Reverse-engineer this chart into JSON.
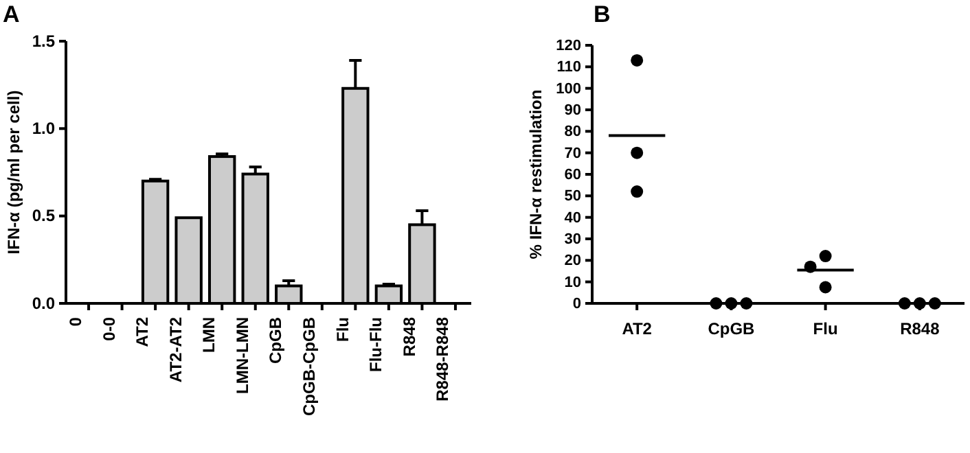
{
  "chart_data": [
    {
      "type": "bar",
      "title": "A",
      "ylabel": "IFN-α (pg/ml per cell)",
      "categories": [
        "0",
        "0-0",
        "AT2",
        "AT2-AT2",
        "LMN",
        "LMN-LMN",
        "CpGB",
        "CpGB-CpGB",
        "Flu",
        "Flu-Flu",
        "R848",
        "R848-R848"
      ],
      "values": [
        0,
        0,
        0.7,
        0.49,
        0.84,
        0.74,
        0.1,
        0,
        1.23,
        0.1,
        0.45,
        0
      ],
      "errors": [
        null,
        null,
        [
          0.7,
          0.71
        ],
        null,
        [
          0.84,
          0.855
        ],
        [
          0.74,
          0.78
        ],
        [
          0.1,
          0.13
        ],
        null,
        [
          1.23,
          1.39
        ],
        [
          0.1,
          0.11
        ],
        [
          0.45,
          0.53
        ],
        null
      ],
      "color": "#cccccc",
      "ylim": [
        0,
        1.5
      ],
      "yticks": [
        {
          "value": 0,
          "label": "0.0"
        },
        {
          "value": 0.5,
          "label": "0.5"
        },
        {
          "value": 1,
          "label": "1.0"
        },
        {
          "value": 1.5,
          "label": "1.5"
        }
      ],
      "grid": false
    },
    {
      "type": "scatter",
      "title": "B",
      "ylabel": "% IFN-α restimulation",
      "categories": [
        "AT2",
        "CpGB",
        "Flu",
        "R848"
      ],
      "series": [
        {
          "type": "scatter",
          "color": "#000000",
          "x": [
            "AT2",
            "AT2",
            "AT2",
            "CpGB",
            "CpGB",
            "CpGB",
            "Flu",
            "Flu",
            "Flu",
            "R848",
            "R848",
            "R848"
          ],
          "values": [
            113,
            70,
            52,
            0,
            0,
            0,
            22,
            17,
            7.5,
            0,
            0,
            0
          ]
        },
        {
          "type": "box",
          "color": "#000000",
          "boxes": [
            {
              "low": 78,
              "q1": 78,
              "median": 78,
              "q3": 78,
              "high": 78
            },
            null,
            {
              "low": 15.5,
              "q1": 15.5,
              "median": 15.5,
              "q3": 15.5,
              "high": 15.5
            },
            null
          ]
        }
      ],
      "marker": "circle",
      "ylim": [
        0,
        120
      ],
      "yticks": [
        0,
        10,
        20,
        30,
        40,
        50,
        60,
        70,
        80,
        90,
        100,
        110,
        120
      ],
      "grid": false
    }
  ]
}
